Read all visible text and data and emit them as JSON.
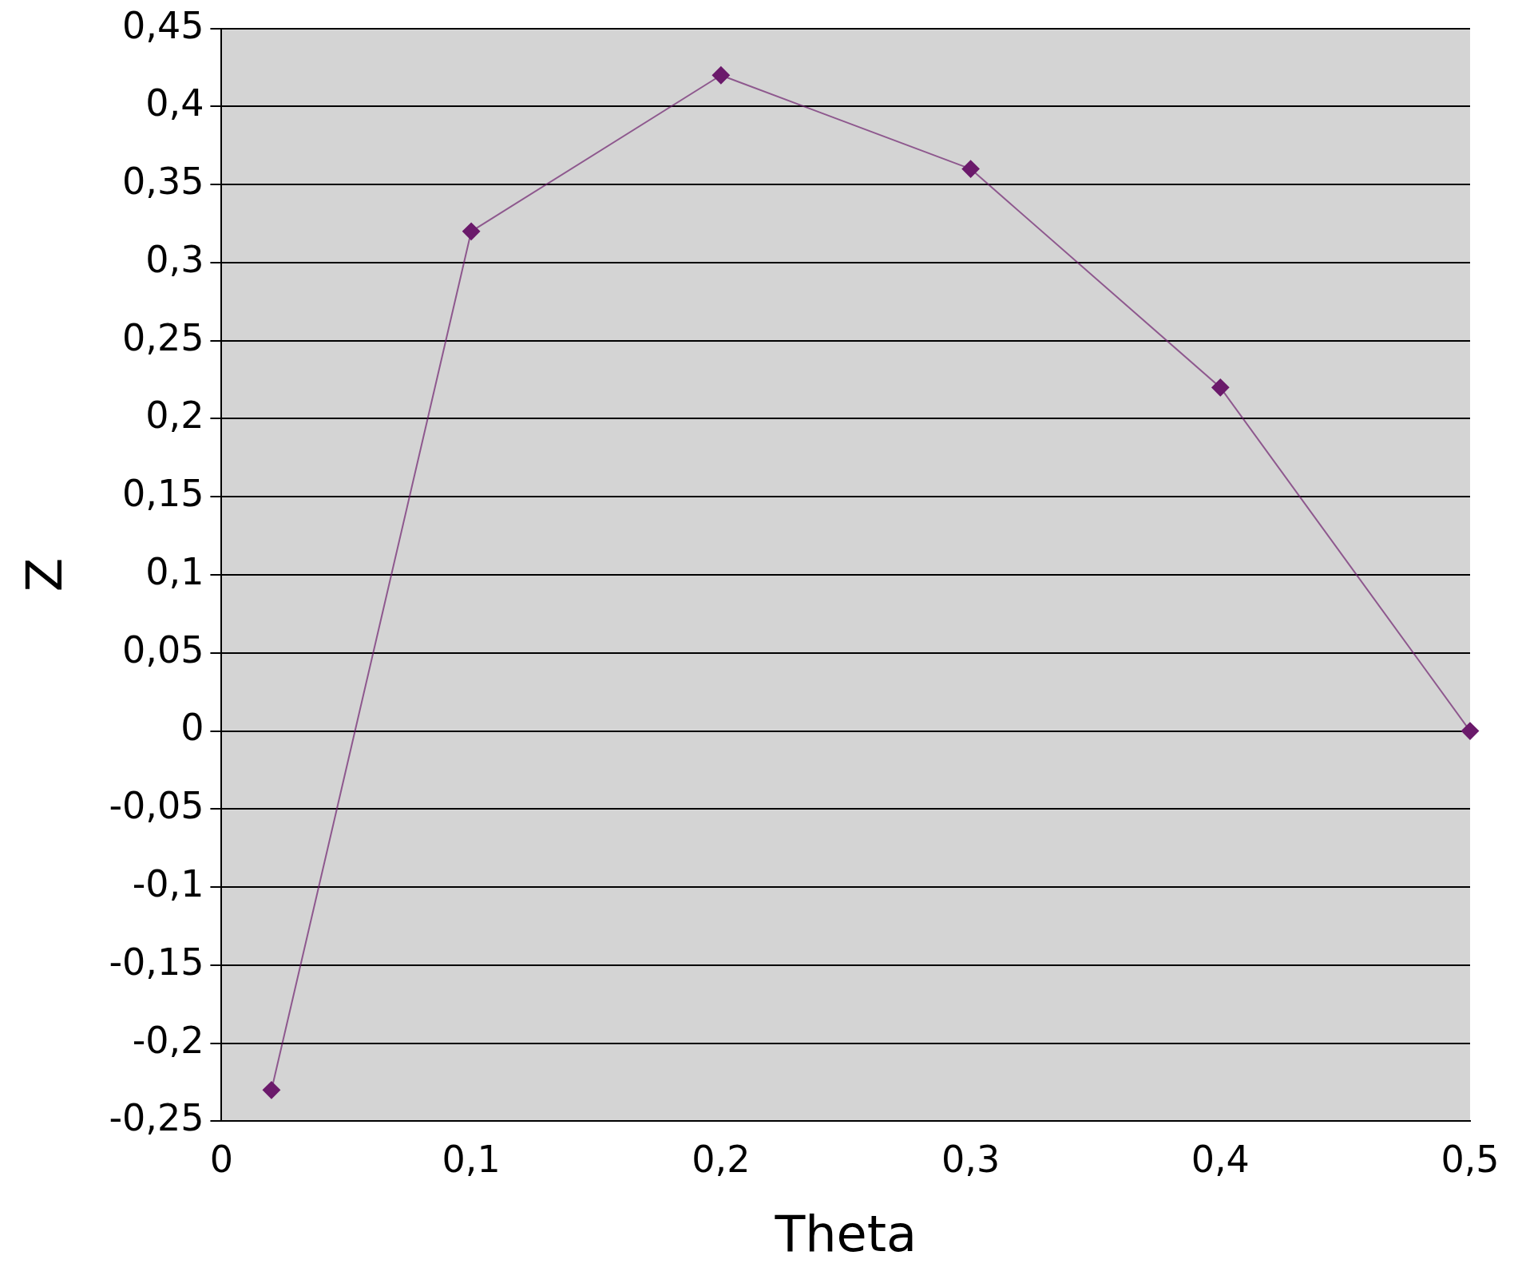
{
  "chart_data": {
    "type": "line",
    "xlabel": "Theta",
    "ylabel": "Z",
    "series": [
      {
        "color": "#6b1a6b",
        "x": [
          0.02,
          0.1,
          0.2,
          0.3,
          0.4,
          0.5
        ],
        "values": [
          -0.23,
          0.32,
          0.42,
          0.36,
          0.22,
          0
        ]
      }
    ],
    "xlim": [
      0,
      0.5
    ],
    "xticks": [
      0,
      {
        "value": 0.1,
        "label": "0,1"
      },
      {
        "value": 0.2,
        "label": "0,2"
      },
      {
        "value": 0.3,
        "label": "0,3"
      },
      {
        "value": 0.4,
        "label": "0,4"
      },
      {
        "value": 0.5,
        "label": "0,5"
      }
    ],
    "ylim": [
      -0.25,
      0.45
    ],
    "yticks": [
      {
        "value": -0.25,
        "label": "-0,25"
      },
      {
        "value": -0.2,
        "label": "-0,2"
      },
      {
        "value": -0.15,
        "label": "-0,15"
      },
      {
        "value": -0.1,
        "label": "-0,1"
      },
      {
        "value": -0.05,
        "label": "-0,05"
      },
      0,
      {
        "value": 0.05,
        "label": "0,05"
      },
      {
        "value": 0.1,
        "label": "0,1"
      },
      {
        "value": 0.15,
        "label": "0,15"
      },
      {
        "value": 0.2,
        "label": "0,2"
      },
      {
        "value": 0.25,
        "label": "0,25"
      },
      {
        "value": 0.3,
        "label": "0,3"
      },
      {
        "value": 0.35,
        "label": "0,35"
      },
      {
        "value": 0.4,
        "label": "0,4"
      },
      {
        "value": 0.45,
        "label": "0,45"
      }
    ],
    "grid": "y",
    "marker": "diamond",
    "legend": false
  }
}
